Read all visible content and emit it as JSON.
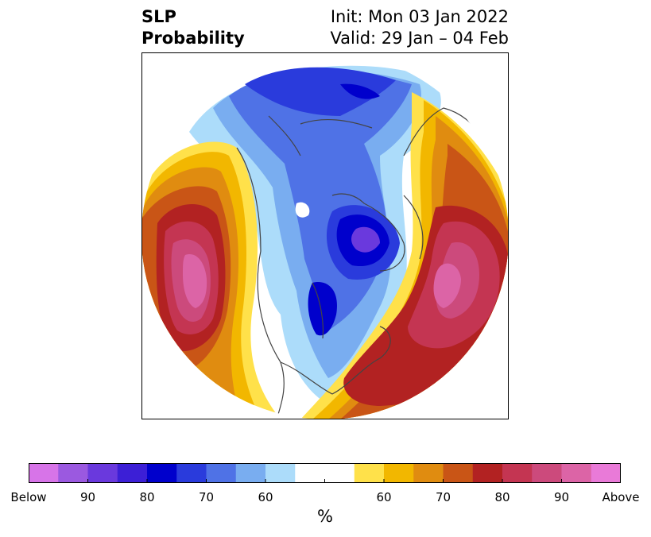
{
  "title": {
    "line1": "SLP",
    "line2": "Probability",
    "init": "Init: Mon 03 Jan 2022",
    "valid": "Valid: 29 Jan – 04 Feb"
  },
  "colorbar": {
    "unit": "%",
    "tick_labels": [
      "Below",
      "90",
      "80",
      "70",
      "60",
      "60",
      "70",
      "80",
      "90",
      "Above"
    ],
    "colors": [
      "#d774e8",
      "#9b59e0",
      "#6a39dd",
      "#3c1fd6",
      "#0000cc",
      "#2a3bdc",
      "#4f72e6",
      "#79adf0",
      "#acdcfa",
      "#ffffff",
      "#ffffff",
      "#ffe14a",
      "#f2b700",
      "#e08c10",
      "#c95516",
      "#b22222",
      "#c43552",
      "#cc4a7c",
      "#dc64a6",
      "#e97ad8"
    ]
  },
  "legend": {
    "below_colors": "blue shades indicate below-normal sea level pressure probability",
    "above_colors": "orange/red/pink shades indicate above-normal sea level pressure probability"
  }
}
